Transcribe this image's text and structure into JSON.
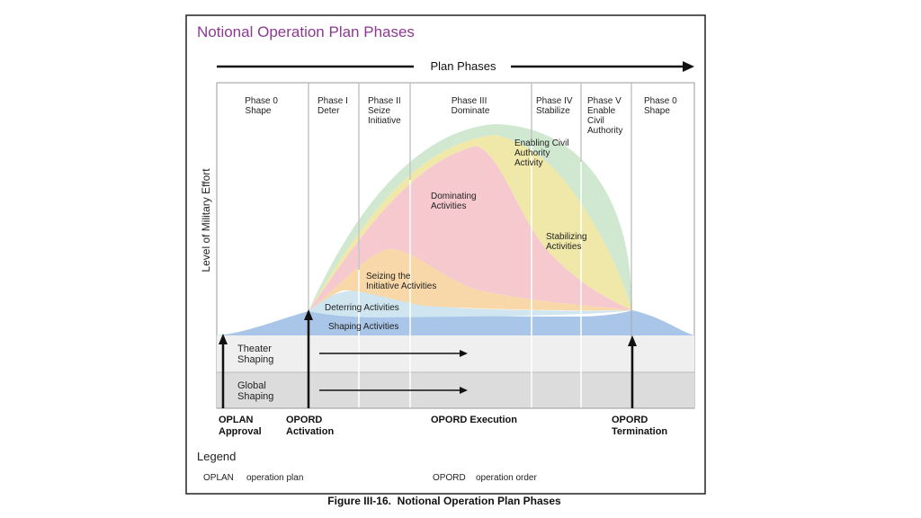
{
  "title": "Notional Operation Plan Phases",
  "plan_phases_label": "Plan Phases",
  "y_axis_label": "Level of Military Effort",
  "phases": [
    {
      "lines": [
        "Phase 0",
        "Shape"
      ]
    },
    {
      "lines": [
        "Phase I",
        "Deter"
      ]
    },
    {
      "lines": [
        "Phase II",
        "Seize",
        "Initiative"
      ]
    },
    {
      "lines": [
        "Phase III",
        "Dominate"
      ]
    },
    {
      "lines": [
        "Phase IV",
        "Stabilize"
      ]
    },
    {
      "lines": [
        "Phase V",
        "Enable",
        "Civil",
        "Authority"
      ]
    },
    {
      "lines": [
        "Phase 0",
        "Shape"
      ]
    }
  ],
  "activities": {
    "enabling": [
      "Enabling Civil",
      "Authority",
      "Activity"
    ],
    "dominating": [
      "Dominating",
      "Activities"
    ],
    "stabilizing": [
      "Stabilizing",
      "Activities"
    ],
    "seizing": [
      "Seizing the",
      "Initiative Activities"
    ],
    "deterring": "Deterring Activities",
    "shaping": "Shaping Activities"
  },
  "bands": {
    "theater": [
      "Theater",
      "Shaping"
    ],
    "global": [
      "Global",
      "Shaping"
    ]
  },
  "milestones": {
    "oplan_approval": [
      "OPLAN",
      "Approval"
    ],
    "opord_activation": [
      "OPORD",
      "Activation"
    ],
    "opord_execution": "OPORD Execution",
    "opord_termination": [
      "OPORD",
      "Termination"
    ]
  },
  "legend": {
    "heading": "Legend",
    "items": [
      {
        "abbr": "OPLAN",
        "desc": "operation plan"
      },
      {
        "abbr": "OPORD",
        "desc": "operation order"
      }
    ]
  },
  "caption": "Figure III-16.  Notional Operation Plan Phases",
  "colors": {
    "title": "#8b3a8f",
    "enabling": "#cfe8cf",
    "stabilizing": "#f0e8a8",
    "dominating": "#f6c9cf",
    "seizing": "#f8d8a8",
    "deterring": "#cfe6f0",
    "shaping": "#a9c6e8",
    "theater_band": "#efefef",
    "global_band": "#dcdcdc"
  }
}
